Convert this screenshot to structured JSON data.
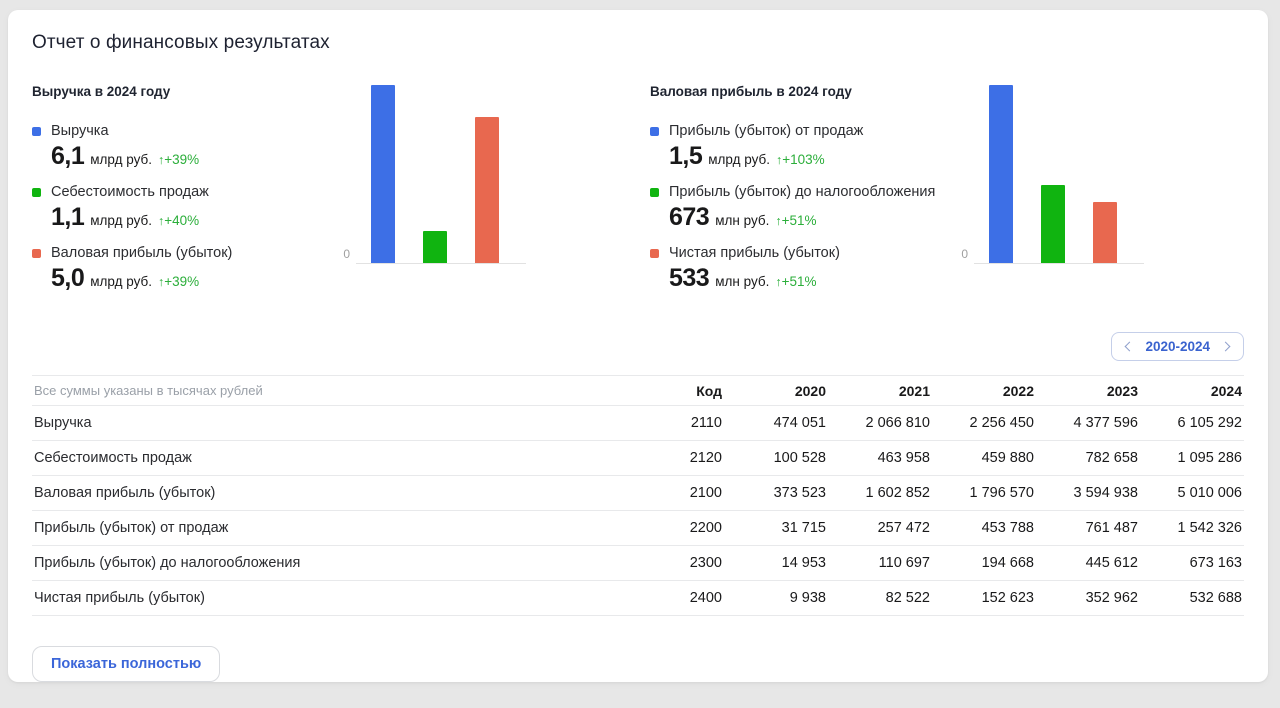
{
  "page": {
    "title": "Отчет о финансовых результатах"
  },
  "charts": [
    {
      "title": "Выручка в 2024 году",
      "zero": "0",
      "legend": [
        {
          "label": "Выручка",
          "value": "6,1",
          "unit": "млрд руб.",
          "arrow": "↑",
          "delta": "+39%"
        },
        {
          "label": "Себестоимость продаж",
          "value": "1,1",
          "unit": "млрд руб.",
          "arrow": "↑",
          "delta": "+40%"
        },
        {
          "label": "Валовая прибыль (убыток)",
          "value": "5,0",
          "unit": "млрд руб.",
          "arrow": "↑",
          "delta": "+39%"
        }
      ]
    },
    {
      "title": "Валовая прибыль в 2024 году",
      "zero": "0",
      "legend": [
        {
          "label": "Прибыль (убыток) от продаж",
          "value": "1,5",
          "unit": "млрд руб.",
          "arrow": "↑",
          "delta": "+103%"
        },
        {
          "label": "Прибыль (убыток) до налогообложения",
          "value": "673",
          "unit": "млн руб.",
          "arrow": "↑",
          "delta": "+51%"
        },
        {
          "label": "Чистая прибыль (убыток)",
          "value": "533",
          "unit": "млн руб.",
          "arrow": "↑",
          "delta": "+51%"
        }
      ]
    }
  ],
  "chart_data": [
    {
      "type": "bar",
      "title": "Выручка в 2024 году",
      "categories": [
        "Выручка",
        "Себестоимость продаж",
        "Валовая прибыль (убыток)"
      ],
      "values": [
        6105292,
        1095286,
        5010006
      ],
      "colors": [
        "#3d6fe6",
        "#10b410",
        "#e8684f"
      ],
      "ylim": [
        0,
        6105292
      ],
      "y_zero_label": "0",
      "grid": false,
      "legend_position": "left"
    },
    {
      "type": "bar",
      "title": "Валовая прибыль в 2024 году",
      "categories": [
        "Прибыль (убыток) от продаж",
        "Прибыль (убыток) до налогообложения",
        "Чистая прибыль (убыток)"
      ],
      "values": [
        1542326,
        673163,
        532688
      ],
      "colors": [
        "#3d6fe6",
        "#10b410",
        "#e8684f"
      ],
      "ylim": [
        0,
        1542326
      ],
      "y_zero_label": "0",
      "grid": false,
      "legend_position": "left"
    }
  ],
  "colors": {
    "delta_green": "#2bae3a",
    "accent_blue": "#3a63cf",
    "bar_blue": "#3d6fe6",
    "bar_green": "#10b410",
    "bar_red": "#e8684f"
  },
  "pager": {
    "prev_icon": "chevron-left",
    "label": "2020-2024",
    "next_icon": "chevron-right"
  },
  "table": {
    "note": "Все суммы указаны в тысячах рублей",
    "columns": [
      "Код",
      "2020",
      "2021",
      "2022",
      "2023",
      "2024"
    ],
    "rows": [
      {
        "label": "Выручка",
        "code": "2110",
        "values": [
          "474 051",
          "2 066 810",
          "2 256 450",
          "4 377 596",
          "6 105 292"
        ]
      },
      {
        "label": "Себестоимость продаж",
        "code": "2120",
        "values": [
          "100 528",
          "463 958",
          "459 880",
          "782 658",
          "1 095 286"
        ]
      },
      {
        "label": "Валовая прибыль (убыток)",
        "code": "2100",
        "values": [
          "373 523",
          "1 602 852",
          "1 796 570",
          "3 594 938",
          "5 010 006"
        ]
      },
      {
        "label": "Прибыль (убыток) от продаж",
        "code": "2200",
        "values": [
          "31 715",
          "257 472",
          "453 788",
          "761 487",
          "1 542 326"
        ]
      },
      {
        "label": "Прибыль (убыток) до налогообложения",
        "code": "2300",
        "values": [
          "14 953",
          "110 697",
          "194 668",
          "445 612",
          "673 163"
        ]
      },
      {
        "label": "Чистая прибыль (убыток)",
        "code": "2400",
        "values": [
          "9 938",
          "82 522",
          "152 623",
          "352 962",
          "532 688"
        ]
      }
    ]
  },
  "footer": {
    "show_full": "Показать полностью"
  }
}
